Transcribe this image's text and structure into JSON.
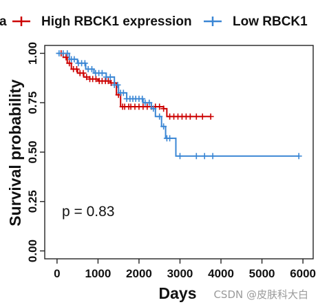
{
  "chart_data": {
    "type": "line",
    "subtype": "kaplan-meier",
    "legend": {
      "placement": "top",
      "entries": [
        {
          "label_visible": "a",
          "color": "#cc0000",
          "clipped": true
        },
        {
          "label": "High RBCK1 expression",
          "color": "#cc0000"
        },
        {
          "label": "Low RBCK1",
          "color": "#3a86d4"
        }
      ]
    },
    "xlabel": "Days",
    "ylabel": "Survival probability",
    "xlim": [
      -300,
      6250
    ],
    "ylim": [
      -0.04,
      1.04
    ],
    "xticks": [
      0,
      1000,
      2000,
      3000,
      4000,
      5000,
      6000
    ],
    "xtick_labels": [
      "0",
      "1000",
      "2000",
      "3000",
      "4000",
      "5000",
      "6000"
    ],
    "yticks": [
      0.0,
      0.25,
      0.5,
      0.75,
      1.0
    ],
    "ytick_labels": [
      "0.00",
      "0.25",
      "0.50",
      "0.75",
      "1.00"
    ],
    "grid": false,
    "annotation": "p = 0.83",
    "series": [
      {
        "name": "High RBCK1 expression",
        "color": "#cc0000",
        "steps": [
          [
            0,
            1.0
          ],
          [
            150,
            0.98
          ],
          [
            250,
            0.95
          ],
          [
            350,
            0.92
          ],
          [
            500,
            0.9
          ],
          [
            650,
            0.88
          ],
          [
            800,
            0.87
          ],
          [
            1000,
            0.86
          ],
          [
            1300,
            0.85
          ],
          [
            1450,
            0.79
          ],
          [
            1550,
            0.73
          ],
          [
            2600,
            0.72
          ],
          [
            2680,
            0.68
          ],
          [
            3750,
            0.68
          ]
        ],
        "censor_x": [
          100,
          220,
          300,
          400,
          480,
          560,
          640,
          720,
          800,
          870,
          950,
          1030,
          1100,
          1180,
          1250,
          1320,
          1400,
          1500,
          1600,
          1650,
          1750,
          1800,
          1900,
          2000,
          2100,
          2200,
          2300,
          2400,
          2500,
          2600,
          2750,
          2850,
          2950,
          3050,
          3150,
          3250,
          3400,
          3550,
          3750
        ]
      },
      {
        "name": "Low RBCK1",
        "color": "#3a86d4",
        "steps": [
          [
            0,
            1.0
          ],
          [
            300,
            0.97
          ],
          [
            500,
            0.95
          ],
          [
            700,
            0.92
          ],
          [
            900,
            0.9
          ],
          [
            1200,
            0.88
          ],
          [
            1400,
            0.84
          ],
          [
            1500,
            0.8
          ],
          [
            1700,
            0.77
          ],
          [
            2100,
            0.75
          ],
          [
            2300,
            0.72
          ],
          [
            2400,
            0.68
          ],
          [
            2550,
            0.63
          ],
          [
            2650,
            0.57
          ],
          [
            2900,
            0.48
          ],
          [
            5900,
            0.48
          ]
        ],
        "censor_x": [
          50,
          150,
          250,
          350,
          420,
          520,
          600,
          680,
          760,
          850,
          940,
          1020,
          1100,
          1200,
          1300,
          1400,
          1480,
          1550,
          1620,
          1700,
          1780,
          1850,
          1920,
          2000,
          2080,
          2150,
          2250,
          2350,
          2500,
          2600,
          2680,
          2750,
          3000,
          3400,
          3600,
          3800,
          5900
        ]
      }
    ]
  },
  "watermark": "CSDN @皮肤科大白"
}
